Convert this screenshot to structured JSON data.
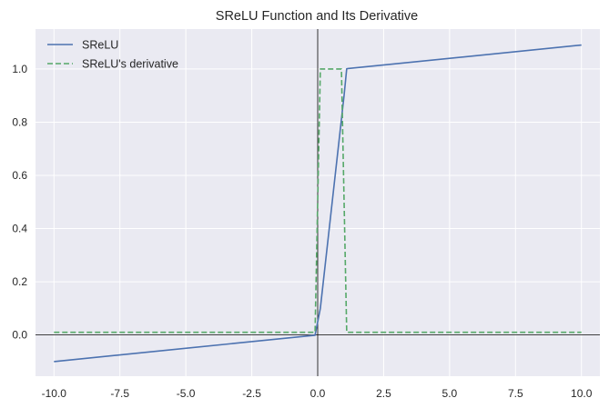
{
  "chart_data": {
    "type": "line",
    "title": "SReLU Function and Its Derivative",
    "xlabel": "",
    "ylabel": "",
    "xlim": [
      -10.7,
      10.7
    ],
    "ylim": [
      -0.155,
      1.15
    ],
    "x_ticks": [
      -10.0,
      -7.5,
      -5.0,
      -2.5,
      0.0,
      2.5,
      5.0,
      7.5,
      10.0
    ],
    "x_tick_labels": [
      "-10.0",
      "-7.5",
      "-5.0",
      "-2.5",
      "0.0",
      "2.5",
      "5.0",
      "7.5",
      "10.0"
    ],
    "y_ticks": [
      0.0,
      0.2,
      0.4,
      0.6,
      0.8,
      1.0
    ],
    "y_tick_labels": [
      "0.0",
      "0.2",
      "0.4",
      "0.6",
      "0.8",
      "1.0"
    ],
    "grid": true,
    "axis_lines_at_origin": true,
    "legend_position": "top-left",
    "colors": {
      "background": "#eaeaf2",
      "grid": "#ffffff",
      "axis_line": "#000000"
    },
    "series": [
      {
        "name": "SReLU",
        "style": "solid",
        "color": "#4c72b0",
        "x": [
          -10.0,
          -0.1,
          0.1,
          1.0,
          1.1,
          10.0
        ],
        "y": [
          -0.1,
          -0.001,
          0.1,
          0.9,
          1.001,
          1.09
        ]
      },
      {
        "name": "SReLU's derivative",
        "style": "dashed",
        "color": "#55a868",
        "x": [
          -10.0,
          -0.1,
          0.1,
          0.9,
          1.1,
          10.0
        ],
        "y": [
          0.01,
          0.01,
          1.0,
          1.0,
          0.01,
          0.01
        ]
      }
    ]
  }
}
